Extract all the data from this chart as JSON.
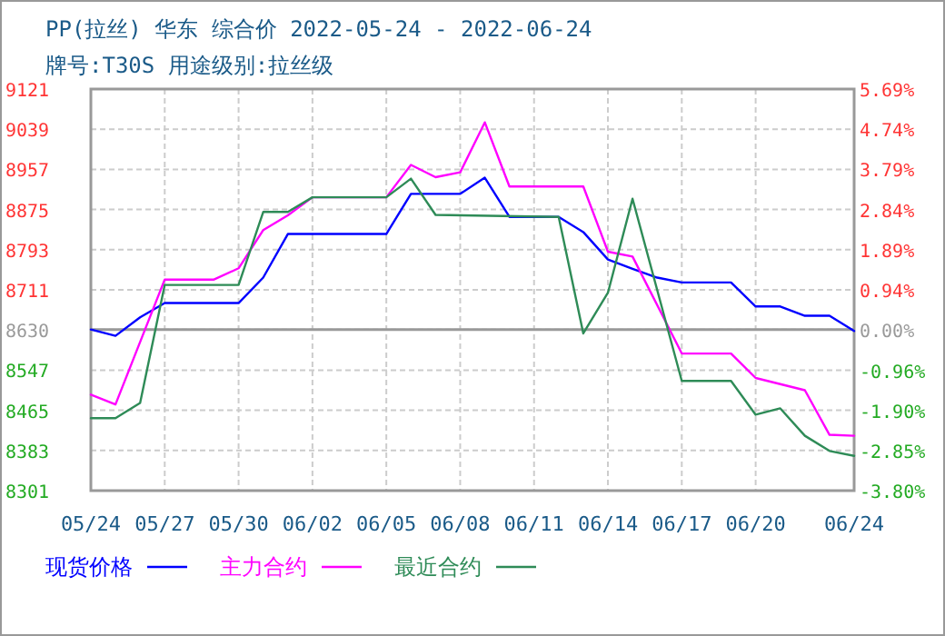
{
  "chart_data": {
    "type": "line",
    "title": "PP(拉丝) 华东 综合价 2022-05-24 - 2022-06-24",
    "subtitle": "牌号:T30S 用途级别:拉丝级",
    "xlim": [
      "2022-05-24",
      "2022-06-24"
    ],
    "xticks": [
      {
        "value": "2022-05-24",
        "label": "05/24"
      },
      {
        "value": "2022-05-27",
        "label": "05/27"
      },
      {
        "value": "2022-05-30",
        "label": "05/30"
      },
      {
        "value": "2022-06-02",
        "label": "06/02"
      },
      {
        "value": "2022-06-05",
        "label": "06/05"
      },
      {
        "value": "2022-06-08",
        "label": "06/08"
      },
      {
        "value": "2022-06-11",
        "label": "06/11"
      },
      {
        "value": "2022-06-14",
        "label": "06/14"
      },
      {
        "value": "2022-06-17",
        "label": "06/17"
      },
      {
        "value": "2022-06-20",
        "label": "06/20"
      },
      {
        "value": "2022-06-24",
        "label": "06/24"
      }
    ],
    "ylim": [
      8301,
      9121
    ],
    "yticks": [
      8301,
      8383,
      8465,
      8547,
      8630,
      8711,
      8793,
      8875,
      8957,
      9039,
      9121
    ],
    "y2lim": [
      -3.8,
      5.69
    ],
    "y2ticks": [
      {
        "value": -3.8,
        "label": "-3.80%"
      },
      {
        "value": -2.85,
        "label": "-2.85%"
      },
      {
        "value": -1.9,
        "label": "-1.90%"
      },
      {
        "value": -0.96,
        "label": "-0.96%"
      },
      {
        "value": 0,
        "label": "0.00%"
      },
      {
        "value": 0.94,
        "label": "0.94%"
      },
      {
        "value": 1.89,
        "label": "1.89%"
      },
      {
        "value": 2.84,
        "label": "2.84%"
      },
      {
        "value": 3.79,
        "label": "3.79%"
      },
      {
        "value": 4.74,
        "label": "4.74%"
      },
      {
        "value": 5.69,
        "label": "5.69%"
      }
    ],
    "ref_lines": [
      {
        "axis": "y",
        "value": 8630,
        "color": "#999999"
      }
    ],
    "grid": true,
    "legend": "bottom",
    "line_style": "solid",
    "series": [
      {
        "name": "现货价格",
        "color": "#0000ff",
        "x": [
          "2022-05-24",
          "2022-05-25",
          "2022-05-26",
          "2022-05-27",
          "2022-05-30",
          "2022-05-31",
          "2022-06-01",
          "2022-06-05",
          "2022-06-06",
          "2022-06-08",
          "2022-06-09",
          "2022-06-10",
          "2022-06-12",
          "2022-06-13",
          "2022-06-14",
          "2022-06-15",
          "2022-06-16",
          "2022-06-17",
          "2022-06-19",
          "2022-06-20",
          "2022-06-21",
          "2022-06-22",
          "2022-06-23",
          "2022-06-24"
        ],
        "values": [
          8630,
          8617,
          8655,
          8684,
          8684,
          8736,
          8825,
          8825,
          8907,
          8907,
          8940,
          8860,
          8860,
          8829,
          8773,
          8754,
          8736,
          8726,
          8726,
          8677,
          8677,
          8658,
          8658,
          8627
        ]
      },
      {
        "name": "主力合约",
        "color": "#ff00ff",
        "x": [
          "2022-05-24",
          "2022-05-25",
          "2022-05-27",
          "2022-05-29",
          "2022-05-30",
          "2022-05-31",
          "2022-06-01",
          "2022-06-02",
          "2022-06-05",
          "2022-06-06",
          "2022-06-07",
          "2022-06-08",
          "2022-06-09",
          "2022-06-10",
          "2022-06-13",
          "2022-06-14",
          "2022-06-15",
          "2022-06-17",
          "2022-06-19",
          "2022-06-20",
          "2022-06-22",
          "2022-06-23",
          "2022-06-24"
        ],
        "values": [
          8497,
          8477,
          8732,
          8732,
          8755,
          8833,
          8863,
          8900,
          8900,
          8966,
          8941,
          8951,
          9053,
          8922,
          8922,
          8789,
          8779,
          8581,
          8581,
          8531,
          8506,
          8415,
          8413
        ]
      },
      {
        "name": "最近合约",
        "color": "#2e8b57",
        "x": [
          "2022-05-24",
          "2022-05-25",
          "2022-05-26",
          "2022-05-27",
          "2022-05-30",
          "2022-05-31",
          "2022-06-01",
          "2022-06-02",
          "2022-06-05",
          "2022-06-06",
          "2022-06-07",
          "2022-06-12",
          "2022-06-13",
          "2022-06-14",
          "2022-06-15",
          "2022-06-17",
          "2022-06-19",
          "2022-06-20",
          "2022-06-21",
          "2022-06-22",
          "2022-06-23",
          "2022-06-24"
        ],
        "values": [
          8449,
          8449,
          8480,
          8721,
          8721,
          8870,
          8870,
          8900,
          8900,
          8938,
          8864,
          8860,
          8622,
          8705,
          8897,
          8525,
          8525,
          8456,
          8469,
          8413,
          8382,
          8372
        ]
      }
    ]
  }
}
